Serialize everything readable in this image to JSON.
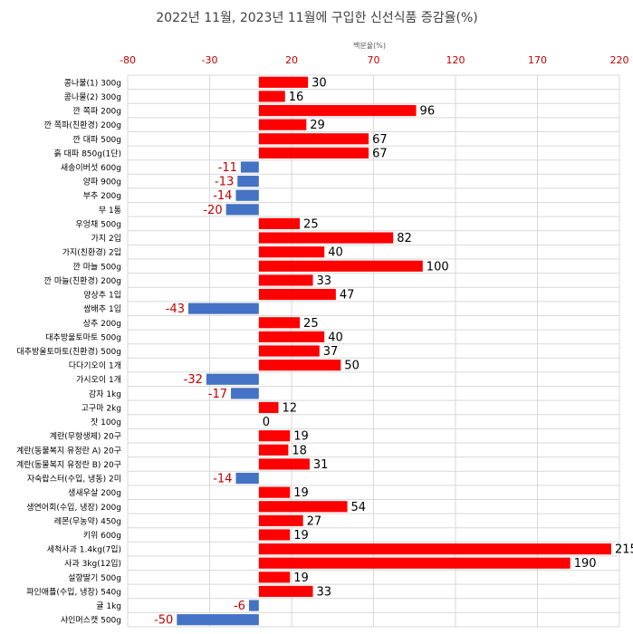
{
  "chart_data": {
    "type": "bar",
    "orientation": "horizontal",
    "title": "2022년 11월, 2023년 11월에 구입한 신선식품 증감율(%)",
    "xlabel": "백분율(%)",
    "ylabel": "",
    "xlim": [
      -80,
      220
    ],
    "xticks": [
      -80,
      -30,
      20,
      70,
      120,
      170,
      220
    ],
    "categories": [
      "콩나물(1) 300g",
      "콩나물(2) 300g",
      "깐 쪽파 200g",
      "깐 쪽파(친환경) 200g",
      "깐 대파 500g",
      "흙 대파 850g(1단)",
      "새송이버섯 600g",
      "양파 900g",
      "부추 200g",
      "무 1통",
      "우엉채 500g",
      "가지 2입",
      "가지(친환경) 2입",
      "깐 마늘 500g",
      "깐 마늘(친환경) 200g",
      "양상추 1입",
      "쌈배추 1입",
      "상추 200g",
      "대추방울토마토 500g",
      "대추방울토마토(친환경) 500g",
      "다다기오이 1개",
      "가시오이 1개",
      "감자 1kg",
      "고구마 2kg",
      "잣 100g",
      "계란(무항생제) 20구",
      "계란(동물복지 유정란 A) 20구",
      "계란(동물복지 유정란 B) 20구",
      "자숙랍스터(수입, 냉동) 2미",
      "생새우살 200g",
      "생연어회(수입, 냉장) 200g",
      "레몬(무농약) 450g",
      "키위 600g",
      "세척사과 1.4kg(7입)",
      "사과 3kg(12입)",
      "설향딸기 500g",
      "파인애플(수입, 냉장) 540g",
      "귤 1kg",
      "샤인머스캣 500g"
    ],
    "values": [
      30,
      16,
      96,
      29,
      67,
      67,
      -11,
      -13,
      -14,
      -20,
      25,
      82,
      40,
      100,
      33,
      47,
      -43,
      25,
      40,
      37,
      50,
      -32,
      -17,
      12,
      0,
      19,
      18,
      31,
      -14,
      19,
      54,
      27,
      19,
      215,
      190,
      19,
      33,
      -6,
      -50
    ],
    "grid": true,
    "legend": "none",
    "colors": {
      "positive": "#ff0000",
      "negative": "#4472c4",
      "negative_label": "#c00000",
      "positive_label": "#000000",
      "tick_label": "#c00000"
    }
  }
}
